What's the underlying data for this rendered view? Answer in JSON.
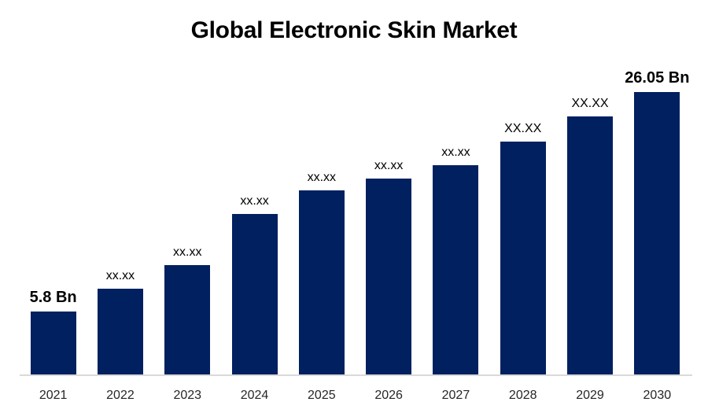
{
  "title": "Global Electronic Skin Market",
  "colors": {
    "bar": "#002060",
    "axis_line": "#d9d9d9",
    "title_text": "#000000",
    "value_label_text": "#000000",
    "year_label_text": "#262626",
    "background": "#ffffff"
  },
  "chart_data": {
    "type": "bar",
    "title": "Global Electronic Skin Market",
    "categories": [
      "2021",
      "2022",
      "2023",
      "2024",
      "2025",
      "2026",
      "2027",
      "2028",
      "2029",
      "2030"
    ],
    "bar_labels": [
      "5.8 Bn",
      "xx.xx",
      "xx.xx",
      "xx.xx",
      "xx.xx",
      "xx.xx",
      "xx.xx",
      "XX.XX",
      "XX.XX",
      "26.05 Bn"
    ],
    "label_bold": [
      true,
      false,
      false,
      false,
      false,
      false,
      false,
      false,
      false,
      true
    ],
    "values_est_bn": [
      5.8,
      7.9,
      10.1,
      14.8,
      17.0,
      18.1,
      19.3,
      21.5,
      23.8,
      26.05
    ],
    "unit": "Bn",
    "known_values_bn": {
      "2021": 5.8,
      "2030": 26.05
    },
    "ylim": [
      0,
      26.05
    ],
    "grid": false,
    "legend": "none",
    "xlabel": "",
    "ylabel": ""
  }
}
